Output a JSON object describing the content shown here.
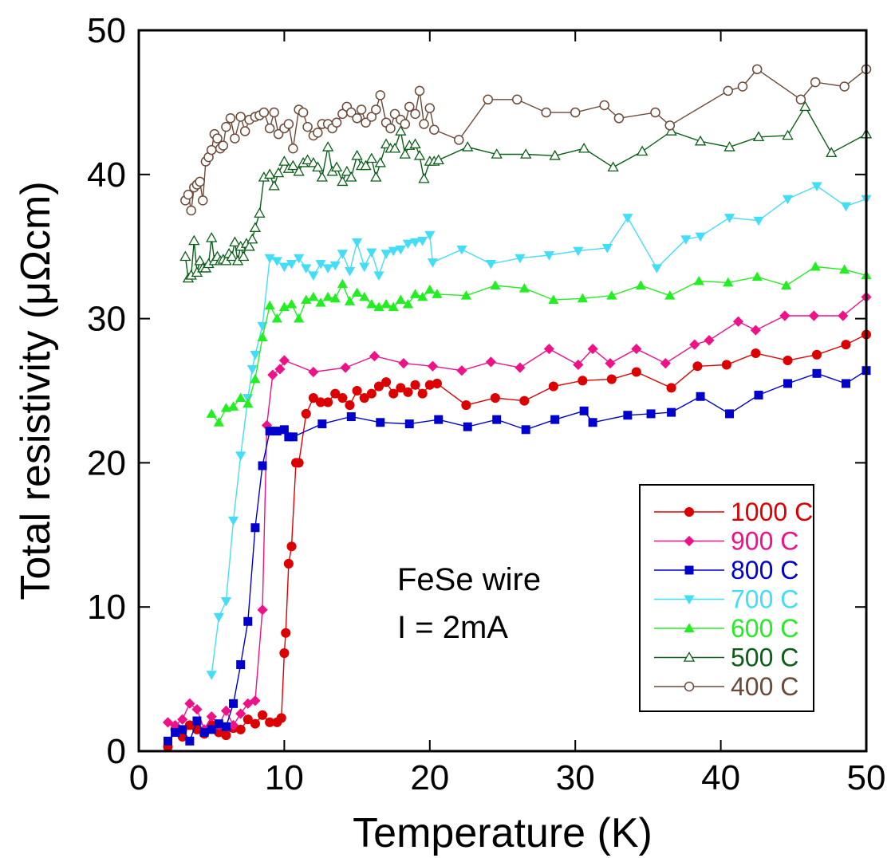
{
  "chart_data": {
    "type": "line",
    "xlabel": "Temperature (K)",
    "ylabel": "Total resistivity (μΩcm)",
    "xlim": [
      0,
      50
    ],
    "ylim": [
      0,
      50
    ],
    "x_ticks": [
      "0",
      "10",
      "20",
      "30",
      "40",
      "50"
    ],
    "y_ticks": [
      "0",
      "10",
      "20",
      "30",
      "40",
      "50"
    ],
    "grid": false,
    "legend_position": "bottom-right",
    "annotations": [
      "FeSe wire",
      "I = 2mA"
    ],
    "series": [
      {
        "name": "1000 C",
        "color": "#dd0000",
        "marker": "filled-circle",
        "x": [
          2.0,
          2.5,
          3.0,
          3.5,
          4.0,
          4.5,
          5.0,
          5.5,
          6.0,
          6.5,
          7.0,
          7.5,
          8.0,
          8.5,
          9.0,
          9.5,
          9.8,
          10.0,
          10.1,
          10.3,
          10.5,
          10.8,
          11.0,
          11.5,
          12.0,
          12.5,
          13.0,
          13.5,
          14.0,
          14.5,
          15.0,
          15.5,
          16.0,
          16.5,
          17.0,
          17.5,
          18.0,
          18.5,
          19.0,
          19.5,
          20.0,
          20.5,
          22.5,
          24.5,
          26.5,
          28.5,
          30.5,
          32.5,
          34.2,
          36.6,
          38.4,
          40.4,
          42.4,
          44.6,
          46.6,
          48.6,
          50.0
        ],
        "y": [
          0.3,
          1.5,
          1.0,
          1.8,
          1.5,
          1.2,
          1.8,
          1.3,
          1.1,
          1.6,
          1.5,
          2.2,
          1.9,
          2.5,
          2.0,
          2.0,
          2.3,
          6.8,
          8.2,
          13.0,
          14.2,
          20.0,
          20.0,
          23.4,
          24.5,
          24.2,
          24.2,
          24.8,
          24.5,
          24.0,
          25.0,
          24.5,
          24.8,
          25.3,
          25.6,
          24.8,
          25.2,
          24.9,
          25.4,
          24.8,
          25.4,
          25.5,
          24.0,
          24.5,
          24.3,
          25.3,
          25.7,
          25.8,
          26.3,
          25.2,
          26.7,
          26.8,
          27.6,
          27.1,
          27.5,
          28.2,
          28.9
        ]
      },
      {
        "name": "900 C",
        "color": "#ee1188",
        "marker": "filled-diamond",
        "x": [
          2.0,
          2.5,
          3.0,
          3.5,
          4.0,
          4.5,
          5.0,
          5.5,
          6.0,
          6.5,
          7.0,
          7.5,
          8.0,
          8.5,
          8.8,
          9.2,
          9.7,
          10.0,
          12.0,
          14.2,
          16.2,
          18.2,
          20.2,
          22.2,
          24.2,
          26.2,
          28.2,
          30.2,
          31.2,
          32.4,
          34.2,
          36.2,
          38.2,
          39.2,
          41.2,
          42.4,
          44.4,
          46.4,
          48.4,
          50.0
        ],
        "y": [
          2.0,
          1.8,
          2.2,
          3.3,
          2.9,
          1.5,
          2.4,
          1.8,
          2.8,
          1.8,
          2.6,
          3.3,
          3.5,
          9.8,
          22.6,
          26.1,
          26.5,
          27.1,
          26.3,
          26.6,
          27.4,
          26.9,
          26.7,
          26.4,
          27.0,
          26.6,
          27.9,
          26.8,
          27.9,
          26.9,
          27.9,
          26.9,
          28.2,
          28.5,
          29.8,
          29.2,
          30.2,
          30.2,
          30.2,
          31.5
        ]
      },
      {
        "name": "800 C",
        "color": "#0000cc",
        "marker": "filled-square",
        "x": [
          2.0,
          2.5,
          3.0,
          3.5,
          4.0,
          4.5,
          5.0,
          5.5,
          6.0,
          6.5,
          7.0,
          7.5,
          8.0,
          8.5,
          9.0,
          9.5,
          10.0,
          10.3,
          10.6,
          12.6,
          14.6,
          16.6,
          18.6,
          20.6,
          22.6,
          24.6,
          26.6,
          28.6,
          30.6,
          31.2,
          33.6,
          35.2,
          36.6,
          38.6,
          40.6,
          42.6,
          44.6,
          46.6,
          48.6,
          50.0
        ],
        "y": [
          0.7,
          1.3,
          1.5,
          0.7,
          2.1,
          1.3,
          1.5,
          1.9,
          1.7,
          3.3,
          6.0,
          9.0,
          15.5,
          19.8,
          22.2,
          22.2,
          22.3,
          21.8,
          21.8,
          22.7,
          23.2,
          22.8,
          22.7,
          23.0,
          22.5,
          23.0,
          22.3,
          23.0,
          23.6,
          22.8,
          23.3,
          23.4,
          23.5,
          24.6,
          23.4,
          24.7,
          25.5,
          26.2,
          25.5,
          26.4
        ]
      },
      {
        "name": "700 C",
        "color": "#44ddf7",
        "marker": "filled-triangle-down",
        "x": [
          5.0,
          5.5,
          6.0,
          6.5,
          7.0,
          7.5,
          7.8,
          8.0,
          8.5,
          9.0,
          9.5,
          10.0,
          10.5,
          11.0,
          11.5,
          12.0,
          12.5,
          13.0,
          13.5,
          14.0,
          14.5,
          15.0,
          15.5,
          16.0,
          16.5,
          17.0,
          17.5,
          18.0,
          18.5,
          19.0,
          19.5,
          20.0,
          20.2,
          22.2,
          24.2,
          26.2,
          28.2,
          30.2,
          32.2,
          33.6,
          35.6,
          37.6,
          38.6,
          40.6,
          42.6,
          44.6,
          46.6,
          48.6,
          50.0
        ],
        "y": [
          5.3,
          9.3,
          10.4,
          16.0,
          20.5,
          24.5,
          26.5,
          27.5,
          29.5,
          34.2,
          34.0,
          33.6,
          33.8,
          34.2,
          33.5,
          33.0,
          33.8,
          33.5,
          33.7,
          34.5,
          33.3,
          35.3,
          33.6,
          34.6,
          33.0,
          34.5,
          34.7,
          34.8,
          35.2,
          35.3,
          35.4,
          35.8,
          33.9,
          34.8,
          33.8,
          34.2,
          34.4,
          34.7,
          34.9,
          37.0,
          33.5,
          35.5,
          35.7,
          37.0,
          36.8,
          38.3,
          39.2,
          37.8,
          38.3
        ]
      },
      {
        "name": "600 C",
        "color": "#22ee22",
        "marker": "filled-triangle-up",
        "x": [
          5.0,
          5.5,
          6.0,
          6.5,
          7.0,
          7.5,
          8.0,
          8.5,
          9.0,
          9.5,
          10.0,
          10.5,
          11.0,
          11.5,
          12.0,
          12.5,
          13.0,
          13.5,
          14.0,
          14.5,
          15.0,
          15.5,
          16.0,
          16.5,
          17.0,
          17.5,
          18.0,
          18.5,
          19.0,
          19.5,
          20.0,
          20.5,
          22.5,
          24.5,
          26.5,
          28.5,
          30.5,
          32.5,
          34.5,
          36.5,
          38.5,
          40.5,
          42.5,
          44.5,
          46.5,
          48.5,
          50.0
        ],
        "y": [
          23.4,
          22.8,
          23.8,
          23.9,
          24.5,
          24.1,
          25.8,
          28.7,
          30.9,
          30.0,
          30.8,
          31.0,
          30.0,
          31.3,
          31.5,
          31.1,
          31.5,
          31.4,
          32.4,
          31.2,
          31.8,
          31.5,
          31.0,
          30.8,
          31.0,
          30.8,
          31.3,
          31.0,
          31.7,
          31.5,
          32.0,
          31.7,
          31.6,
          32.3,
          32.1,
          31.3,
          31.4,
          31.6,
          32.3,
          31.6,
          32.6,
          32.5,
          32.9,
          32.3,
          33.6,
          33.4,
          33.0
        ]
      },
      {
        "name": "500 C",
        "color": "#0b5e18",
        "marker": "open-triangle-up",
        "x": [
          3.2,
          3.4,
          3.6,
          3.8,
          4.0,
          4.2,
          4.4,
          4.6,
          4.8,
          5.0,
          5.2,
          5.4,
          5.6,
          5.8,
          6.0,
          6.2,
          6.4,
          6.6,
          6.8,
          7.0,
          7.2,
          7.4,
          7.6,
          7.8,
          8.0,
          8.3,
          8.6,
          9.0,
          9.3,
          9.6,
          10.0,
          10.3,
          10.6,
          11.0,
          11.3,
          11.6,
          12.0,
          12.3,
          12.6,
          13.0,
          13.3,
          13.6,
          14.0,
          14.3,
          14.6,
          15.0,
          15.3,
          15.6,
          16.0,
          16.3,
          16.6,
          17.0,
          17.3,
          17.6,
          18.0,
          18.3,
          18.6,
          19.0,
          19.3,
          19.6,
          20.0,
          20.3,
          20.6,
          22.6,
          24.6,
          26.6,
          28.6,
          30.6,
          32.6,
          34.6,
          36.6,
          38.6,
          40.6,
          42.6,
          44.6,
          45.8,
          47.6,
          50.0
        ],
        "y": [
          34.3,
          32.8,
          33.0,
          35.4,
          33.2,
          34.0,
          33.5,
          33.5,
          33.8,
          35.6,
          34.0,
          34.3,
          34.0,
          34.1,
          34.0,
          34.5,
          34.3,
          35.3,
          34.0,
          35.0,
          34.3,
          35.2,
          35.0,
          35.5,
          36.3,
          37.3,
          39.8,
          40.0,
          39.2,
          40.1,
          40.9,
          40.4,
          40.6,
          40.2,
          40.8,
          41.0,
          40.8,
          40.5,
          39.8,
          41.9,
          40.2,
          40.5,
          39.5,
          40.2,
          39.8,
          41.3,
          40.6,
          40.6,
          41.1,
          39.8,
          40.8,
          42.1,
          41.8,
          41.8,
          43.0,
          41.4,
          42.0,
          42.1,
          41.3,
          39.7,
          40.9,
          40.9,
          41.0,
          41.9,
          41.4,
          41.4,
          41.3,
          41.8,
          40.5,
          41.6,
          43.0,
          42.3,
          41.9,
          42.6,
          42.7,
          44.7,
          41.5,
          42.8
        ]
      },
      {
        "name": "400 C",
        "color": "#6b4938",
        "marker": "open-circle",
        "x": [
          3.2,
          3.4,
          3.6,
          3.8,
          4.0,
          4.2,
          4.4,
          4.6,
          4.8,
          5.0,
          5.2,
          5.4,
          5.6,
          5.8,
          6.0,
          6.3,
          6.6,
          7.0,
          7.3,
          7.6,
          8.0,
          8.3,
          8.6,
          9.0,
          9.3,
          9.6,
          10.0,
          10.3,
          10.6,
          11.0,
          11.3,
          11.6,
          12.0,
          12.3,
          12.6,
          13.0,
          13.3,
          13.6,
          14.0,
          14.3,
          14.6,
          15.0,
          15.3,
          15.6,
          16.0,
          16.3,
          16.6,
          17.0,
          17.3,
          17.6,
          18.0,
          18.3,
          18.6,
          19.0,
          19.3,
          19.6,
          20.0,
          20.3,
          22.0,
          24.0,
          26.0,
          28.0,
          30.0,
          32.0,
          33.0,
          35.5,
          36.5,
          40.5,
          41.5,
          42.5,
          45.5,
          46.5,
          48.5,
          50.0
        ],
        "y": [
          38.2,
          38.6,
          37.5,
          39.1,
          39.3,
          39.5,
          38.2,
          40.9,
          41.2,
          41.7,
          42.8,
          42.5,
          41.8,
          42.0,
          43.3,
          43.9,
          42.5,
          44.0,
          43.0,
          43.8,
          44.0,
          44.1,
          44.3,
          43.2,
          44.3,
          42.8,
          43.2,
          43.5,
          41.8,
          44.5,
          44.3,
          43.3,
          42.7,
          42.9,
          43.5,
          43.5,
          43.2,
          43.6,
          44.2,
          44.7,
          44.3,
          43.9,
          44.5,
          43.6,
          44.0,
          44.5,
          45.5,
          43.6,
          43.2,
          44.2,
          43.8,
          43.5,
          44.7,
          44.2,
          45.8,
          43.5,
          44.6,
          43.1,
          42.4,
          45.2,
          45.2,
          44.3,
          44.3,
          44.8,
          43.9,
          44.3,
          43.4,
          45.8,
          46.1,
          47.3,
          45.2,
          46.4,
          46.1,
          47.3
        ]
      }
    ]
  }
}
